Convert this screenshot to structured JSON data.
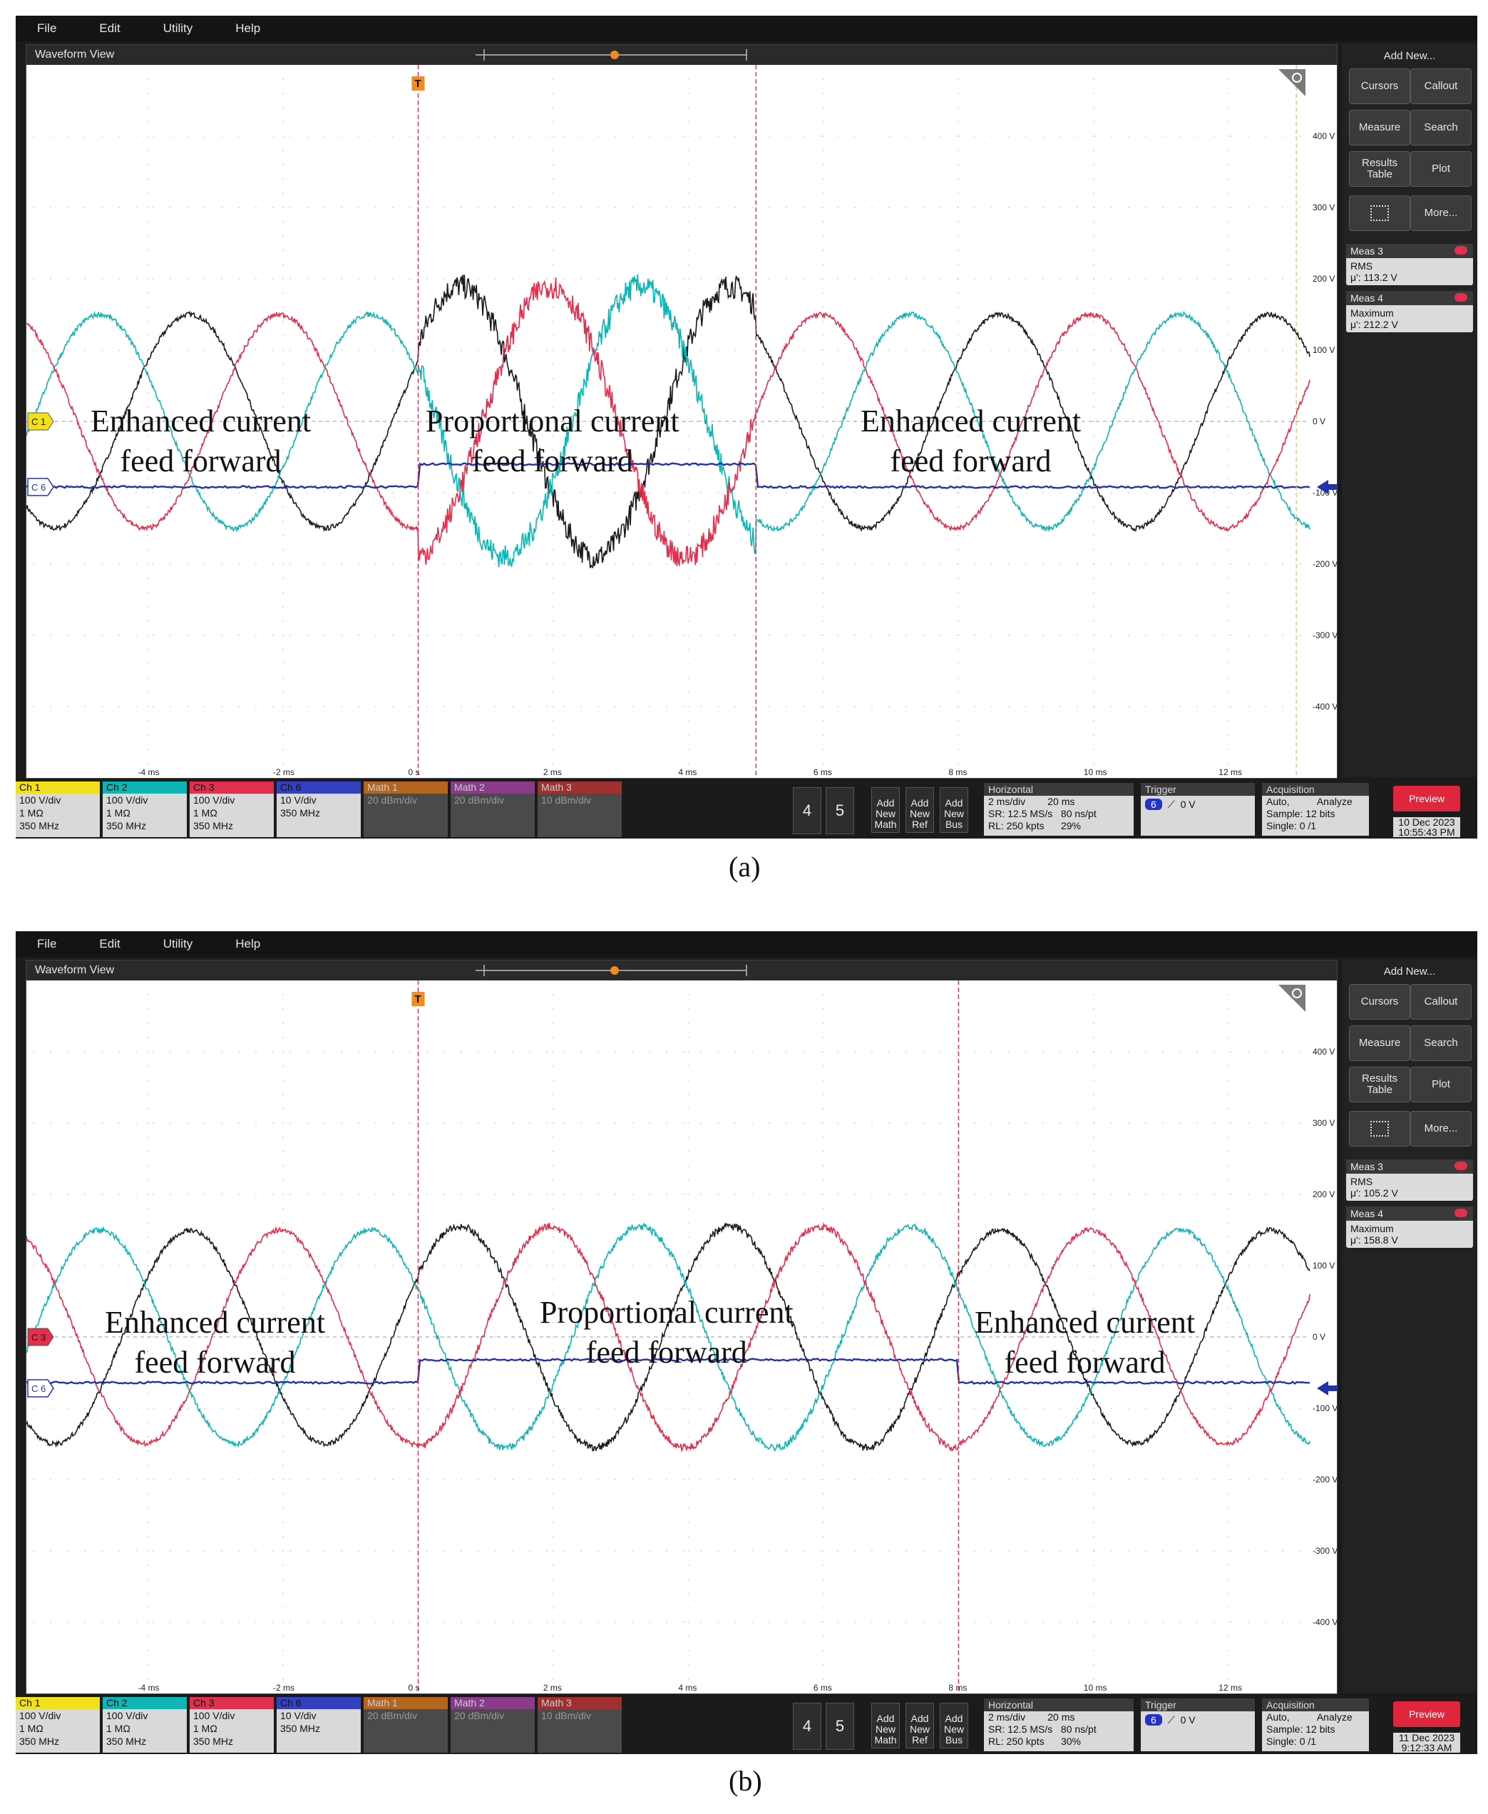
{
  "panels": [
    {
      "caption": "(a)",
      "menu": [
        "File",
        "Edit",
        "Utility",
        "Help"
      ],
      "view_title": "Waveform View",
      "ref_marker": "C 1",
      "ref_color": "#f2e11a",
      "trace_color_list": [
        "#1b1b1b",
        "#0fb4b4",
        "#e0304e"
      ],
      "trig_marker": "C 6",
      "vaxis": [
        "400 V",
        "300 V",
        "200 V",
        "100 V",
        "0 V",
        "-100 V",
        "-200 V",
        "-300 V",
        "-400 V"
      ],
      "taxis": [
        "-4 ms",
        "-2 ms",
        "0 s",
        "2 ms",
        "4 ms",
        "6 ms",
        "8 ms",
        "10 ms",
        "12 ms"
      ],
      "annotations": {
        "left": [
          "Enhanced current",
          "feed forward"
        ],
        "middle": [
          "Proportional current",
          "feed forward"
        ],
        "right": [
          "Enhanced current",
          "feed forward"
        ]
      },
      "side": {
        "title": "Add New...",
        "buttons": [
          "Cursors",
          "Callout",
          "Measure",
          "Search",
          "Results Table",
          "Plot",
          "",
          "More..."
        ],
        "meas3": {
          "name": "Meas 3",
          "type": "RMS",
          "value": "μ': 113.2 V"
        },
        "meas4": {
          "name": "Meas 4",
          "type": "Maximum",
          "value": "μ': 212.2 V"
        }
      },
      "channels": [
        {
          "name": "Ch 1",
          "color": "#f2e11a",
          "l1": "100 V/div",
          "l2": "1 MΩ",
          "l3": "350 MHz"
        },
        {
          "name": "Ch 2",
          "color": "#0fb4b4",
          "l1": "100 V/div",
          "l2": "1 MΩ",
          "l3": "350 MHz"
        },
        {
          "name": "Ch 3",
          "color": "#e0304e",
          "l1": "100 V/div",
          "l2": "1 MΩ",
          "l3": "350 MHz"
        },
        {
          "name": "Ch 6",
          "color": "#3340c0",
          "l1": "10 V/div",
          "l2": "",
          "l3": "350 MHz"
        }
      ],
      "maths": [
        {
          "name": "Math 1",
          "color": "#b5651d",
          "l1": "20 dBm/div"
        },
        {
          "name": "Math 2",
          "color": "#8a3c8a",
          "l1": "20 dBm/div"
        },
        {
          "name": "Math 3",
          "color": "#a03030",
          "l1": "10 dBm/div"
        }
      ],
      "num_buttons": [
        "4",
        "5"
      ],
      "add_buttons": [
        [
          "Add",
          "New",
          "Math"
        ],
        [
          "Add",
          "New",
          "Ref"
        ],
        [
          "Add",
          "New",
          "Bus"
        ]
      ],
      "horizontal": {
        "title": "Horizontal",
        "l1": "2 ms/div        20 ms",
        "l2": "SR: 12.5 MS/s   80 ns/pt",
        "l3": "RL: 250 kpts      29%"
      },
      "trigger": {
        "title": "Trigger",
        "badge": "6",
        "level": "0 V"
      },
      "acquisition": {
        "title": "Acquisition",
        "l1": "Auto,          Analyze",
        "l2": "Sample: 12 bits",
        "l3": "Single: 0 /1"
      },
      "preview": "Preview",
      "date": "10 Dec 2023",
      "time": "10:55:43 PM",
      "wave": {
        "amp_v": 150,
        "freq_hz": 250,
        "noisy_start_ms": 0,
        "noisy_end_ms": 5,
        "noisy_amp_v": 190,
        "trig_low_v": -25,
        "trig_high_v": -18
      }
    },
    {
      "caption": "(b)",
      "menu": [
        "File",
        "Edit",
        "Utility",
        "Help"
      ],
      "view_title": "Waveform View",
      "ref_marker": "C 3",
      "ref_color": "#e0304e",
      "trace_color_list": [
        "#1b1b1b",
        "#0fb4b4",
        "#e0304e"
      ],
      "trig_marker": "C 6",
      "vaxis": [
        "400 V",
        "300 V",
        "200 V",
        "100 V",
        "0 V",
        "-100 V",
        "-200 V",
        "-300 V",
        "-400 V"
      ],
      "taxis": [
        "-4 ms",
        "-2 ms",
        "0 s",
        "2 ms",
        "4 ms",
        "6 ms",
        "8 ms",
        "10 ms",
        "12 ms"
      ],
      "annotations": {
        "left": [
          "Enhanced current",
          "feed forward"
        ],
        "middle": [
          "Proportional current",
          "feed forward"
        ],
        "right": [
          "Enhanced current",
          "feed forward"
        ]
      },
      "side": {
        "title": "Add New...",
        "buttons": [
          "Cursors",
          "Callout",
          "Measure",
          "Search",
          "Results Table",
          "Plot",
          "",
          "More..."
        ],
        "meas3": {
          "name": "Meas 3",
          "type": "RMS",
          "value": "μ': 105.2 V"
        },
        "meas4": {
          "name": "Meas 4",
          "type": "Maximum",
          "value": "μ': 158.8 V"
        }
      },
      "channels": [
        {
          "name": "Ch 1",
          "color": "#f2e11a",
          "l1": "100 V/div",
          "l2": "1 MΩ",
          "l3": "350 MHz"
        },
        {
          "name": "Ch 2",
          "color": "#0fb4b4",
          "l1": "100 V/div",
          "l2": "1 MΩ",
          "l3": "350 MHz"
        },
        {
          "name": "Ch 3",
          "color": "#e0304e",
          "l1": "100 V/div",
          "l2": "1 MΩ",
          "l3": "350 MHz"
        },
        {
          "name": "Ch 6",
          "color": "#3340c0",
          "l1": "10 V/div",
          "l2": "",
          "l3": "350 MHz"
        }
      ],
      "maths": [
        {
          "name": "Math 1",
          "color": "#b5651d",
          "l1": "20 dBm/div"
        },
        {
          "name": "Math 2",
          "color": "#8a3c8a",
          "l1": "20 dBm/div"
        },
        {
          "name": "Math 3",
          "color": "#a03030",
          "l1": "10 dBm/div"
        }
      ],
      "num_buttons": [
        "4",
        "5"
      ],
      "add_buttons": [
        [
          "Add",
          "New",
          "Math"
        ],
        [
          "Add",
          "New",
          "Ref"
        ],
        [
          "Add",
          "New",
          "Bus"
        ]
      ],
      "horizontal": {
        "title": "Horizontal",
        "l1": "2 ms/div        20 ms",
        "l2": "SR: 12.5 MS/s   80 ns/pt",
        "l3": "RL: 250 kpts      30%"
      },
      "trigger": {
        "title": "Trigger",
        "badge": "6",
        "level": "0 V"
      },
      "acquisition": {
        "title": "Acquisition",
        "l1": "Auto,          Analyze",
        "l2": "Sample: 12 bits",
        "l3": "Single: 0 /1"
      },
      "preview": "Preview",
      "date": "11 Dec 2023",
      "time": "9:12:33 AM",
      "wave": {
        "amp_v": 150,
        "freq_hz": 250,
        "noisy_start_ms": 0,
        "noisy_end_ms": 8,
        "noisy_amp_v": 155,
        "trig_low_v": -23,
        "trig_high_v": -16
      }
    }
  ]
}
